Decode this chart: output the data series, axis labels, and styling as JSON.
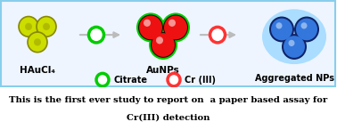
{
  "bg_top": "#EEF5FF",
  "bg_bottom": "#ffffff",
  "border_color": "#87CEEB",
  "text_line1": "This is the first ever study to report on  a paper based assay for",
  "text_line2": "Cr(III) detection",
  "label_haucl4": "HAuCl₄",
  "label_aunps": "AuNPs",
  "label_aggregated": "Aggregated NPs",
  "label_citrate": "Citrate",
  "label_cr": "Cr (III)",
  "yellow_green_fill": "#CCDD00",
  "yellow_green_edge": "#888800",
  "green_ring": "#00CC00",
  "red_fill": "#EE1111",
  "red_edge": "#880000",
  "red_highlight": "#FF8888",
  "blue_fill": "#3377DD",
  "blue_edge": "#112266",
  "cyan_bg": "#AADDFF",
  "arrow_color": "#BBBBBB",
  "cr_ring": "#FF3333"
}
